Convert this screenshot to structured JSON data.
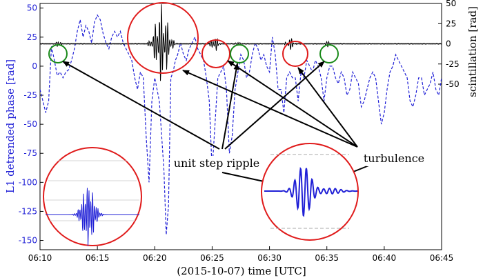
{
  "chart_data": {
    "type": "line",
    "xlabel": "(2015-10-07) time [UTC]",
    "ylabel_left": "L1 detrended phase [rad]",
    "ylabel_right": "scintillation [rad]",
    "x_ticks": [
      "06:10",
      "06:15",
      "06:20",
      "06:25",
      "06:30",
      "06:35",
      "06:40",
      "06:45"
    ],
    "x_tick_minutes": [
      10,
      15,
      20,
      25,
      30,
      35,
      40,
      45
    ],
    "xlim_minutes": [
      10,
      45
    ],
    "y_left_ticks": [
      50,
      25,
      0,
      -25,
      -50,
      -75,
      -100,
      -125,
      -150
    ],
    "ylim_left": [
      -158,
      54
    ],
    "y_right_ticks": [
      50,
      25,
      0,
      -25,
      -50
    ],
    "ylim_right": [
      -50,
      50
    ],
    "series": [
      {
        "role": "detrended phase (dashed, left axis)",
        "color": "#1f1fd6",
        "x": [
          10.0,
          10.25,
          10.5,
          10.75,
          11.0,
          11.25,
          11.5,
          11.75,
          12.0,
          12.25,
          12.5,
          12.75,
          13.0,
          13.25,
          13.5,
          13.75,
          14.0,
          14.25,
          14.5,
          14.75,
          15.0,
          15.25,
          15.5,
          15.75,
          16.0,
          16.25,
          16.5,
          16.75,
          17.0,
          17.25,
          17.5,
          17.75,
          18.0,
          18.25,
          18.5,
          18.75,
          19.0,
          19.25,
          19.5,
          19.75,
          20.0,
          20.2,
          20.4,
          20.6,
          20.8,
          21.0,
          21.2,
          21.4,
          21.6,
          21.8,
          22.0,
          22.25,
          22.5,
          22.75,
          23.0,
          23.25,
          23.5,
          23.75,
          24.0,
          24.25,
          24.5,
          24.75,
          25.0,
          25.25,
          25.5,
          25.75,
          26.0,
          26.25,
          26.5,
          26.75,
          27.0,
          27.25,
          27.5,
          27.75,
          28.0,
          28.25,
          28.5,
          28.75,
          29.0,
          29.25,
          29.5,
          29.75,
          30.0,
          30.25,
          30.5,
          30.75,
          31.0,
          31.25,
          31.5,
          31.75,
          32.0,
          32.25,
          32.5,
          32.75,
          33.0,
          33.25,
          33.5,
          33.75,
          34.0,
          34.25,
          34.5,
          34.75,
          35.0,
          35.25,
          35.5,
          35.75,
          36.0,
          36.25,
          36.5,
          36.75,
          37.0,
          37.25,
          37.5,
          37.75,
          38.0,
          38.25,
          38.5,
          38.75,
          39.0,
          39.25,
          39.5,
          39.75,
          40.0,
          40.25,
          40.5,
          40.75,
          41.0,
          41.25,
          41.5,
          41.75,
          42.0,
          42.25,
          42.5,
          42.75,
          43.0,
          43.25,
          43.5,
          43.75,
          44.0,
          44.25,
          44.5,
          44.75,
          45.0
        ],
        "values": [
          -20,
          -30,
          -40,
          -30,
          17,
          5,
          -8,
          -5,
          -10,
          -5,
          -3,
          5,
          15,
          30,
          40,
          25,
          35,
          30,
          20,
          38,
          44,
          40,
          28,
          20,
          15,
          25,
          30,
          25,
          30,
          20,
          15,
          10,
          5,
          -10,
          -20,
          -5,
          -10,
          -60,
          -100,
          -30,
          -10,
          -20,
          -30,
          -60,
          -90,
          -145,
          -120,
          -10,
          -5,
          5,
          10,
          20,
          10,
          5,
          15,
          20,
          25,
          15,
          10,
          5,
          -10,
          -30,
          -90,
          -50,
          -10,
          -5,
          0,
          -20,
          -75,
          -60,
          -20,
          -5,
          10,
          5,
          -10,
          -5,
          10,
          20,
          15,
          5,
          10,
          0,
          -5,
          25,
          10,
          -20,
          -20,
          -40,
          -10,
          -5,
          -10,
          -10,
          -30,
          -5,
          -10,
          5,
          0,
          -5,
          5,
          0,
          -10,
          -30,
          -10,
          0,
          0,
          -10,
          -15,
          -5,
          -10,
          -25,
          -20,
          -5,
          -10,
          -15,
          -35,
          -30,
          -20,
          -10,
          -5,
          -10,
          -30,
          -50,
          -40,
          -20,
          -5,
          0,
          10,
          5,
          0,
          -5,
          -10,
          -30,
          -35,
          -25,
          -10,
          -10,
          -25,
          -20,
          -15,
          -5,
          -20,
          -25,
          -10
        ]
      },
      {
        "role": "scintillation (solid, right axis)",
        "color": "#000000",
        "baseline": 0
      }
    ],
    "annotations": [
      "unit step ripple",
      "turbulence"
    ]
  }
}
